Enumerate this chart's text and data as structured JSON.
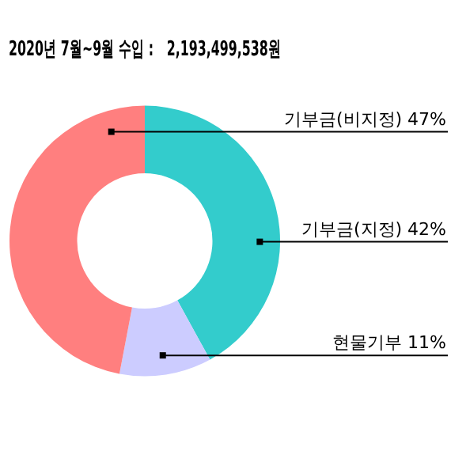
{
  "chart_data": {
    "type": "donut",
    "title": "2020년 7월~9월 수입 :   2,193,499,538원",
    "categories": [
      "기부금(지정)",
      "현물기부",
      "기부금(비지정)"
    ],
    "values": [
      42,
      11,
      47
    ],
    "colors": [
      "#33cccc",
      "#ccccff",
      "#ff7f7f"
    ],
    "value_labels": [
      "42%",
      "11%",
      "47%"
    ],
    "legend": false
  }
}
